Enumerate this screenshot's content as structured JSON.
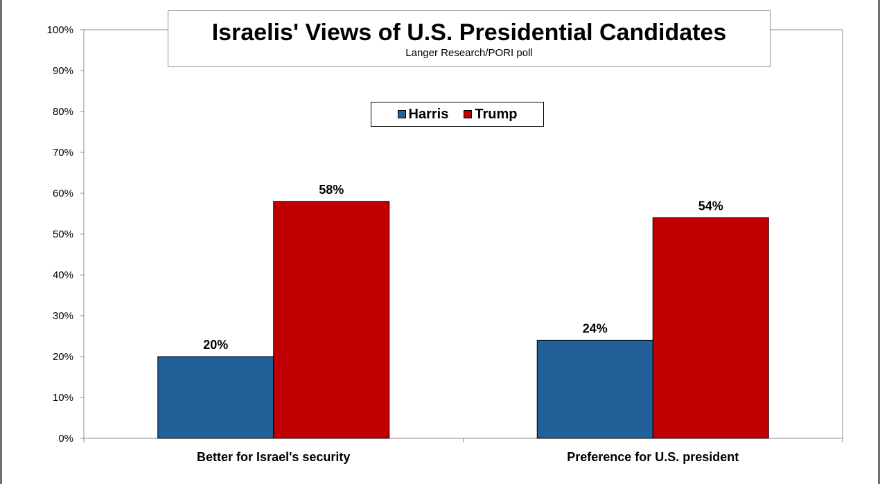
{
  "chart_data": {
    "type": "bar",
    "title": "Israelis' Views of U.S. Presidential Candidates",
    "subtitle": "Langer Research/PORI poll",
    "categories": [
      "Better for Israel's security",
      "Preference for U.S. president"
    ],
    "series": [
      {
        "name": "Harris",
        "color": "#235f99",
        "values": [
          20,
          24
        ],
        "labels": [
          "20%",
          "24%"
        ]
      },
      {
        "name": "Trump",
        "color": "#c00000",
        "values": [
          58,
          54
        ],
        "labels": [
          "58%",
          "54%"
        ]
      }
    ],
    "ylim": [
      0,
      100
    ],
    "yticks": [
      0,
      10,
      20,
      30,
      40,
      50,
      60,
      70,
      80,
      90,
      100
    ],
    "ytick_labels": [
      "0%",
      "10%",
      "20%",
      "30%",
      "40%",
      "50%",
      "60%",
      "70%",
      "80%",
      "90%",
      "100%"
    ],
    "legend_position": "top-center",
    "grid": false
  }
}
